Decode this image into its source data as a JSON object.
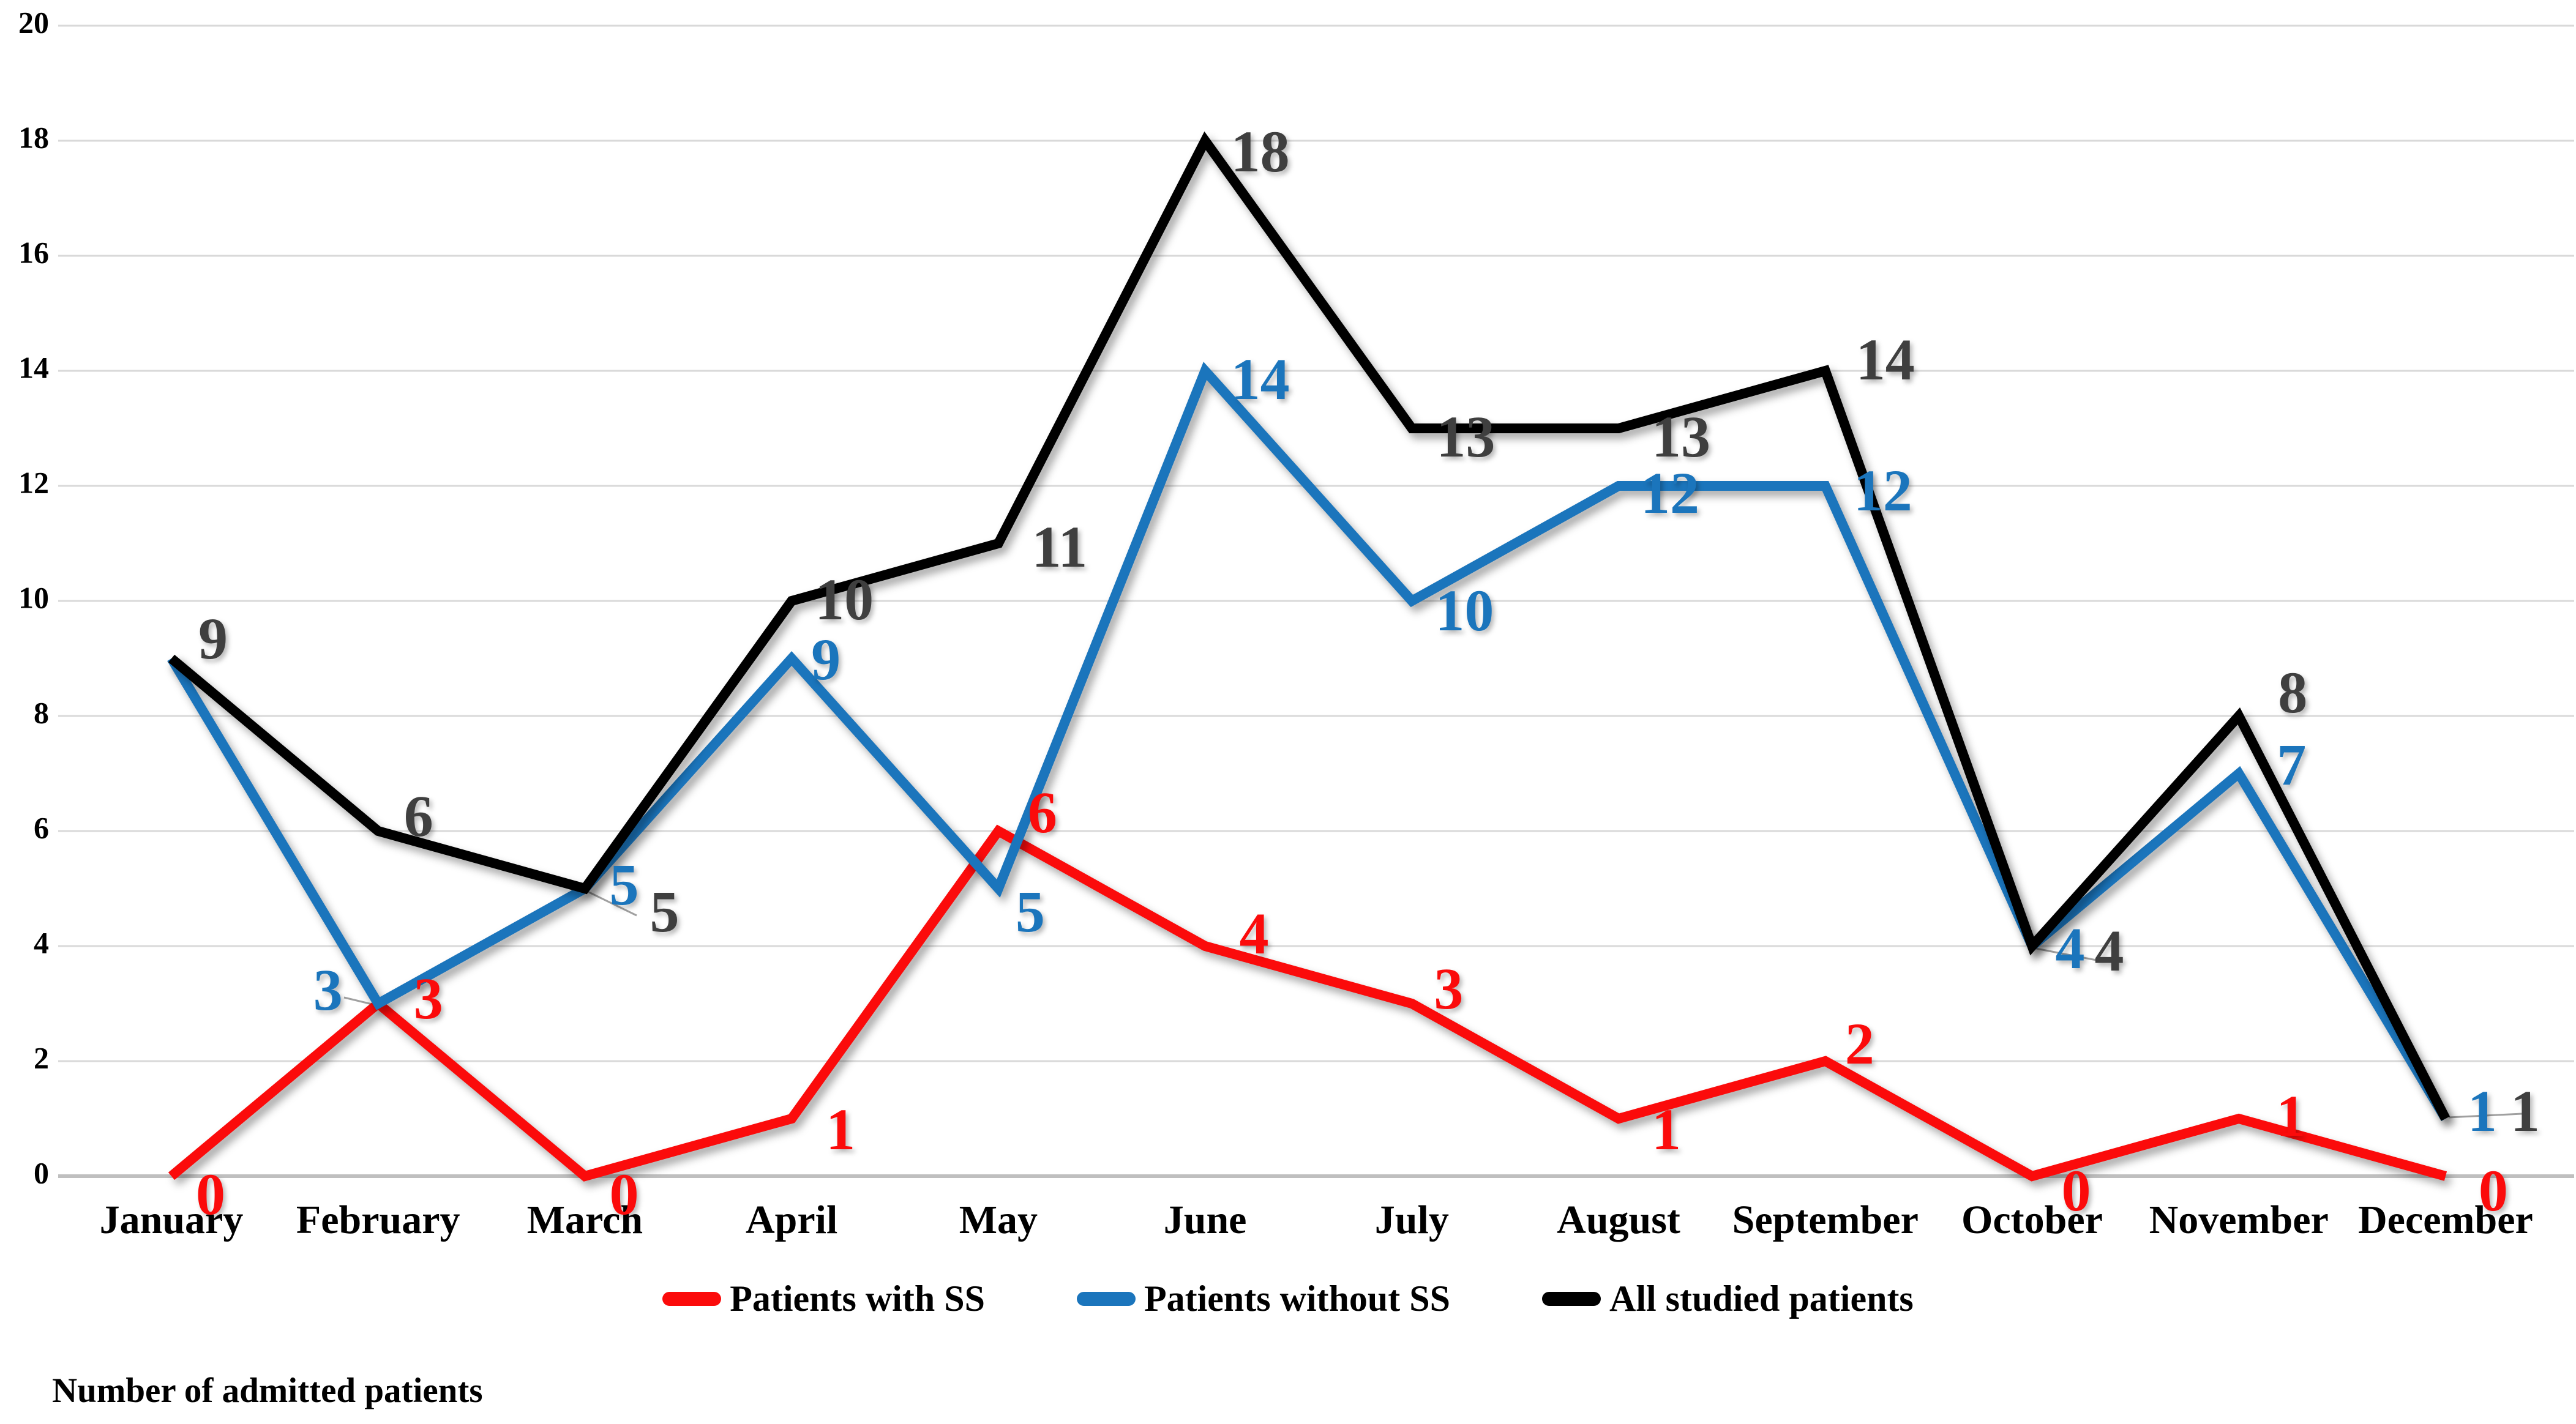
{
  "chart_data": {
    "type": "line",
    "title": "",
    "categories": [
      "January",
      "February",
      "March",
      "April",
      "May",
      "June",
      "July",
      "August",
      "September",
      "October",
      "November",
      "December"
    ],
    "series": [
      {
        "name": "Patients with SS",
        "color": "#FB0B0B",
        "label_color": "#FB0B0B",
        "values": [
          0,
          3,
          0,
          1,
          6,
          4,
          3,
          1,
          2,
          0,
          1,
          0
        ]
      },
      {
        "name": "Patients without SS",
        "color": "#1B75BC",
        "label_color": "#1B75BC",
        "values": [
          9,
          3,
          5,
          9,
          5,
          14,
          10,
          12,
          12,
          4,
          7,
          1
        ]
      },
      {
        "name": "All studied patients",
        "color": "#000000",
        "label_color": "#3F3F3F",
        "values": [
          9,
          6,
          5,
          10,
          11,
          18,
          13,
          13,
          14,
          4,
          8,
          1
        ]
      }
    ],
    "xlabel": "",
    "ylabel": "",
    "axis_caption": "Number of admitted patients",
    "ylim": [
      0,
      20
    ],
    "ytick_step": 2,
    "yticks": [
      "0",
      "2",
      "4",
      "6",
      "8",
      "10",
      "12",
      "14",
      "16",
      "18",
      "20"
    ],
    "grid": "horizontal",
    "gridline_color": "#D9D9D9",
    "axisline_color": "#BFBFBF",
    "leader_line_color": "#A0A0A0",
    "legend_position": "bottom",
    "data_labels_shown": true
  }
}
